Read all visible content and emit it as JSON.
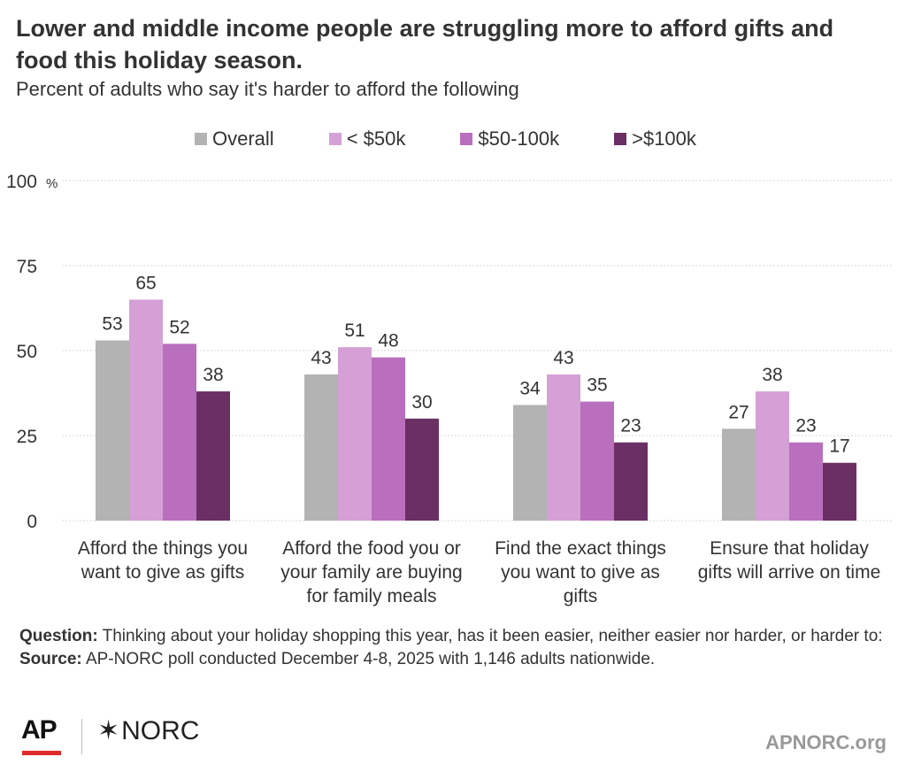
{
  "header": {
    "title": "Lower and middle income people are struggling more to afford gifts and food this holiday season.",
    "subtitle": "Percent of adults who say it's harder to afford the following"
  },
  "chart_data": {
    "type": "bar",
    "title": "Lower and middle income people are struggling more to afford gifts and food this holiday season.",
    "subtitle": "Percent of adults who say it's harder to afford the following",
    "categories": [
      [
        "Afford the things you",
        "want to give as gifts"
      ],
      [
        "Afford the food you or",
        "your family are buying",
        "for family meals"
      ],
      [
        "Find the exact things",
        "you want to give as",
        "gifts"
      ],
      [
        "Ensure that holiday",
        "gifts will arrive on time"
      ]
    ],
    "series": [
      {
        "name": "Overall",
        "color": "#b3b3b3",
        "values": [
          53,
          43,
          34,
          27
        ]
      },
      {
        "name": "< $50k",
        "color": "#d4a0d6",
        "values": [
          65,
          51,
          43,
          38
        ]
      },
      {
        "name": "$50-100k",
        "color": "#b96fbd",
        "values": [
          52,
          48,
          35,
          23
        ]
      },
      {
        "name": ">$100k",
        "color": "#6a2f63",
        "values": [
          38,
          30,
          23,
          17
        ]
      }
    ],
    "ylim": [
      0,
      100
    ],
    "yticks": [
      0,
      25,
      50,
      75,
      100
    ],
    "ytick_labels": [
      "0",
      "25",
      "50",
      "75",
      "100"
    ],
    "y_unit": "%",
    "legend_position": "top"
  },
  "notes": {
    "question_label": "Question:",
    "question_text": " Thinking about your holiday shopping this year, has it been easier, neither easier nor harder, or harder to:",
    "source_label": "Source:",
    "source_text": " AP-NORC poll conducted December 4-8, 2025 with 1,146 adults nationwide."
  },
  "footer": {
    "ap_logo": "AP",
    "norc_star": "✶",
    "norc_logo": "NORC",
    "site": "APNORC.org"
  }
}
